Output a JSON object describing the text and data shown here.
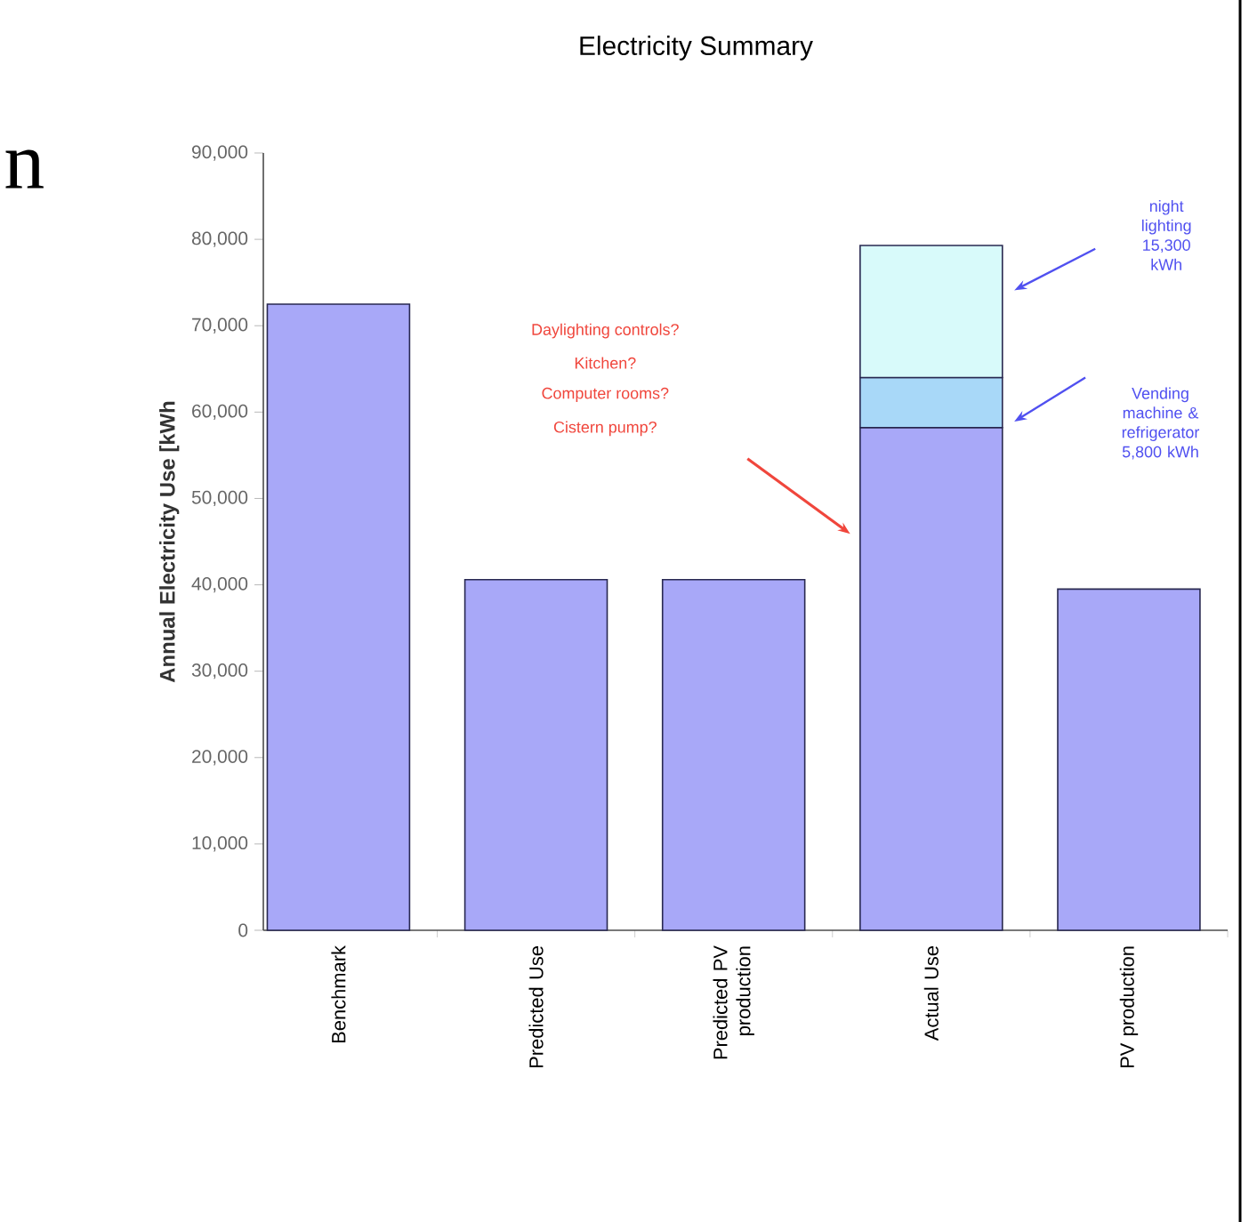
{
  "chart_data": {
    "type": "bar",
    "stacked": true,
    "title": "Electricity Summary",
    "ylabel": "Annual Electricity Use [kWh",
    "categories": [
      "Benchmark",
      "Predicted Use",
      "Predicted PV production",
      "Actual Use",
      "PV production"
    ],
    "series": [
      {
        "color": "#a8a8f8",
        "values": [
          72500,
          40600,
          40600,
          58200,
          39500
        ]
      },
      {
        "color": "#a8d8f8",
        "values": [
          null,
          null,
          null,
          5800,
          null
        ]
      },
      {
        "color": "#d8fafa",
        "values": [
          null,
          null,
          null,
          15300,
          null
        ]
      }
    ],
    "ylim": [
      0,
      90000
    ],
    "yticks": [
      0,
      {
        "value": 10000,
        "label": "10,000"
      },
      {
        "value": 20000,
        "label": "20,000"
      },
      {
        "value": 30000,
        "label": "30,000"
      },
      {
        "value": 40000,
        "label": "40,000"
      },
      {
        "value": 50000,
        "label": "50,000"
      },
      {
        "value": 60000,
        "label": "60,000"
      },
      {
        "value": 70000,
        "label": "70,000"
      },
      {
        "value": 80000,
        "label": "80,000"
      },
      {
        "value": 90000,
        "label": "90,000"
      }
    ],
    "annotations": [
      "Daylighting controls?",
      "Kitchen?",
      "Computer rooms?",
      "Cistern pump?",
      "night lighting 15,300 kWh",
      "Vending machine & refrigerator 5,800 kWh",
      "n"
    ],
    "grid": false
  }
}
